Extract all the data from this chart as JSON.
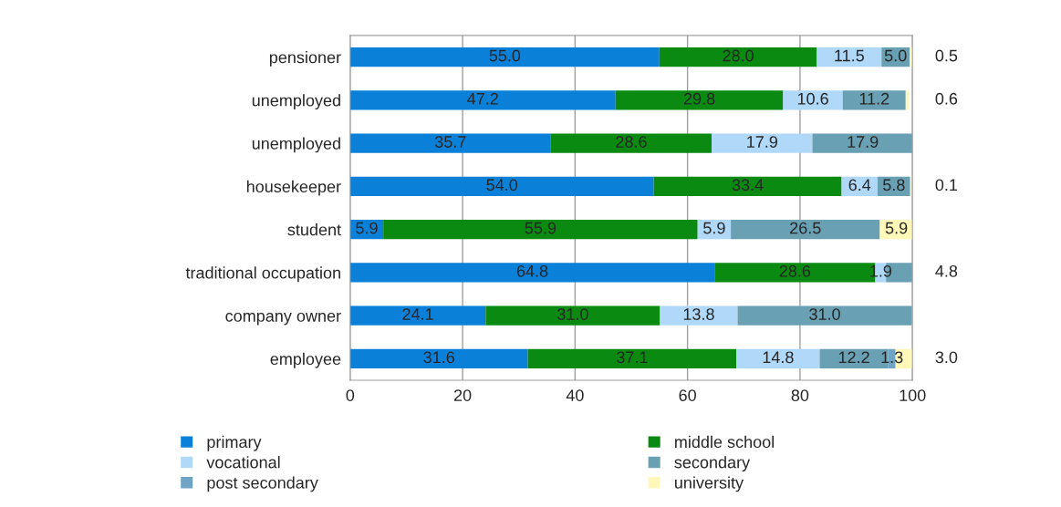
{
  "chart_data": {
    "type": "bar",
    "orientation": "horizontal",
    "stacked": true,
    "categories": [
      "pensioner",
      "unemployed",
      "unemployed",
      "housekeeper",
      "student",
      "traditional occupation",
      "company owner",
      "employee"
    ],
    "series": [
      {
        "name": "primary",
        "color": "#0a80d8",
        "values": [
          55.0,
          47.2,
          35.7,
          54.0,
          5.9,
          64.8,
          24.1,
          31.6
        ],
        "value_labels": [
          "55.0",
          "47.2",
          "35.7",
          "54.0",
          "5.9",
          "64.8",
          "24.1",
          "31.6"
        ]
      },
      {
        "name": "middle school",
        "color": "#0a8a10",
        "values": [
          28.0,
          29.8,
          28.6,
          33.4,
          55.9,
          28.6,
          31.0,
          37.1
        ],
        "value_labels": [
          "28.0",
          "29.8",
          "28.6",
          "33.4",
          "55.9",
          "28.6",
          "31.0",
          "37.1"
        ]
      },
      {
        "name": "vocational",
        "color": "#b0d8f8",
        "values": [
          11.5,
          10.6,
          17.9,
          6.4,
          5.9,
          1.9,
          13.8,
          14.8
        ],
        "value_labels": [
          "11.5",
          "10.6",
          "17.9",
          "6.4",
          "5.9",
          "1.9",
          "13.8",
          "14.8"
        ]
      },
      {
        "name": "secondary",
        "color": "#6aa0b4",
        "values": [
          5.0,
          11.2,
          17.9,
          5.8,
          26.5,
          4.8,
          31.0,
          12.2
        ],
        "value_labels": [
          "5.0",
          "11.2",
          "17.9",
          "5.8",
          "26.5",
          "4.8",
          "31.0",
          "12.2"
        ]
      },
      {
        "name": "post secondary",
        "color": "#70a4c4",
        "values": [
          null,
          null,
          null,
          null,
          null,
          null,
          null,
          1.3
        ],
        "value_labels": [
          null,
          null,
          null,
          null,
          null,
          null,
          null,
          "1.3"
        ]
      },
      {
        "name": "university",
        "color": "#fff8b8",
        "values": [
          0.5,
          0.6,
          null,
          0.1,
          5.9,
          null,
          null,
          3.0
        ],
        "value_labels": [
          "0.5",
          "0.6",
          null,
          "0.1",
          "5.9",
          null,
          null,
          "3.0"
        ]
      }
    ],
    "xlim": [
      0,
      100
    ],
    "xticks": [
      0,
      20,
      40,
      60,
      80,
      100
    ],
    "grid": "x",
    "legend": "bottom"
  }
}
